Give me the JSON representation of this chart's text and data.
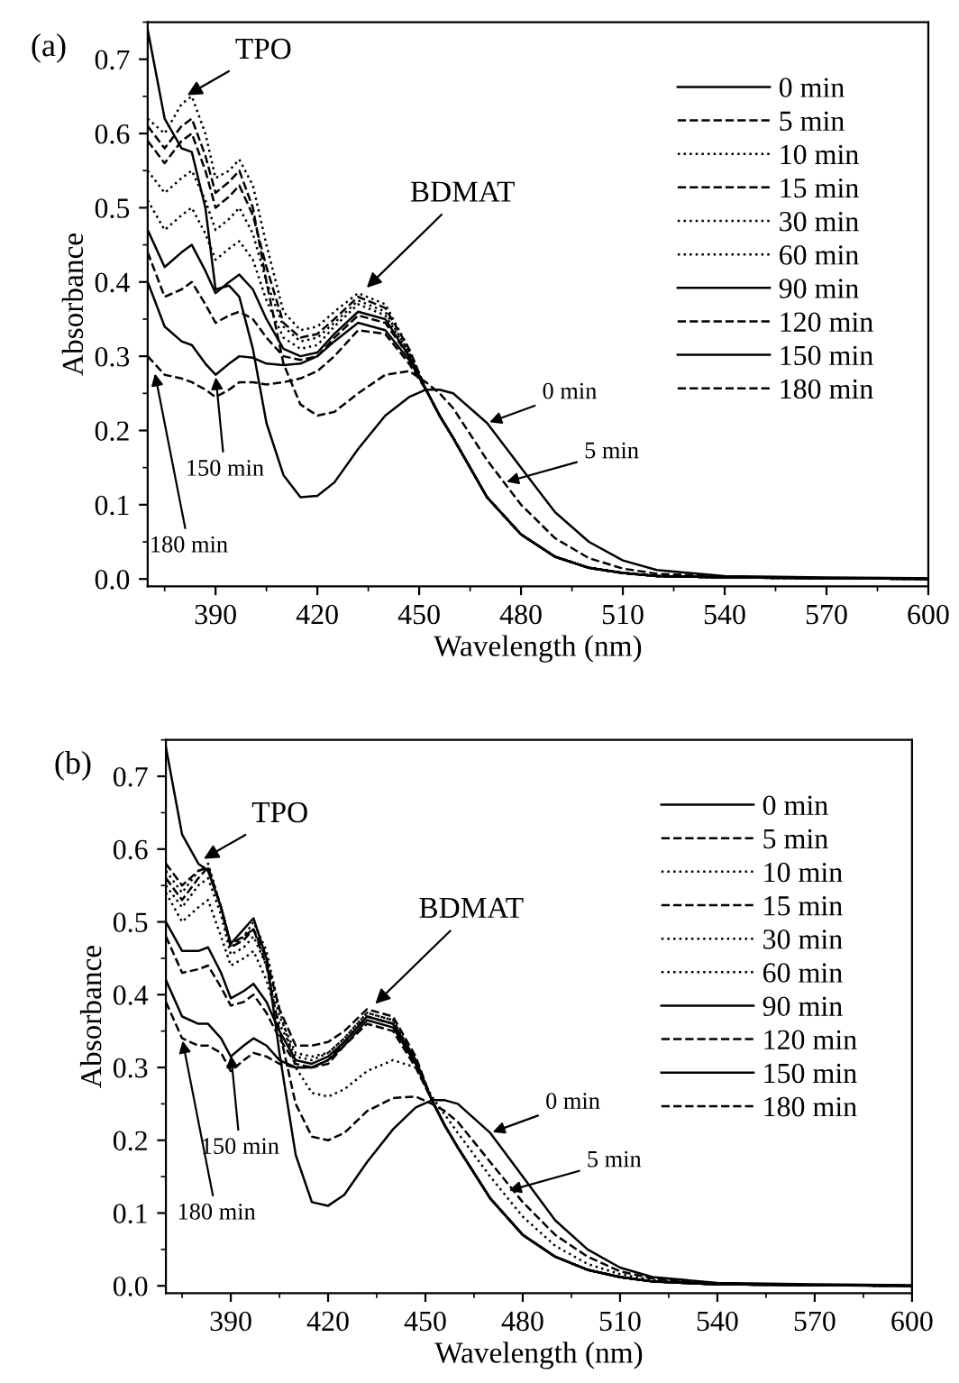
{
  "chart_data": [
    {
      "type": "line",
      "xlabel": "Wavelength (nm)",
      "ylabel": "Absorbance",
      "legend": "top right",
      "grid": false,
      "x": [
        370,
        375,
        380,
        383,
        387,
        390,
        394,
        397,
        401,
        405,
        410,
        415,
        420,
        425,
        432,
        440,
        447,
        452,
        456,
        460,
        470,
        480,
        490,
        500,
        510,
        520,
        540,
        570,
        600
      ],
      "xlim": [
        370,
        600
      ],
      "xticks": [
        390,
        420,
        450,
        480,
        510,
        540,
        570,
        600
      ],
      "ylim": [
        -0.01,
        0.75
      ],
      "yticks": [
        {
          "value": 0,
          "label": "0.0"
        },
        {
          "value": 0.1,
          "label": "0.1"
        },
        {
          "value": 0.2,
          "label": "0.2"
        },
        {
          "value": 0.3,
          "label": "0.3"
        },
        {
          "value": 0.4,
          "label": "0.4"
        },
        {
          "value": 0.5,
          "label": "0.5"
        },
        {
          "value": 0.6,
          "label": "0.6"
        },
        {
          "value": 0.7,
          "label": "0.7"
        }
      ],
      "series": [
        {
          "name": "0 min",
          "color": "#000000",
          "line_style": "solid",
          "values": [
            0.74,
            0.62,
            0.58,
            0.575,
            0.5,
            0.39,
            0.395,
            0.38,
            0.31,
            0.21,
            0.14,
            0.11,
            0.112,
            0.13,
            0.175,
            0.22,
            0.245,
            0.255,
            0.255,
            0.25,
            0.21,
            0.15,
            0.09,
            0.05,
            0.025,
            0.012,
            0.004,
            0.002,
            0.001
          ]
        },
        {
          "name": "5 min",
          "color": "#000000",
          "line_style": "dashed",
          "values": [
            0.61,
            0.58,
            0.61,
            0.62,
            0.57,
            0.52,
            0.535,
            0.55,
            0.5,
            0.4,
            0.29,
            0.235,
            0.22,
            0.225,
            0.25,
            0.275,
            0.28,
            0.265,
            0.25,
            0.23,
            0.16,
            0.1,
            0.055,
            0.028,
            0.014,
            0.007,
            0.003,
            0.001,
            0.0
          ]
        },
        {
          "name": "10 min",
          "color": "#000000",
          "line_style": "dotted",
          "values": [
            0.62,
            0.6,
            0.64,
            0.65,
            0.6,
            0.54,
            0.55,
            0.565,
            0.53,
            0.45,
            0.36,
            0.335,
            0.34,
            0.36,
            0.385,
            0.37,
            0.31,
            0.255,
            0.22,
            0.19,
            0.11,
            0.06,
            0.03,
            0.015,
            0.008,
            0.004,
            0.002,
            0.001,
            0.0
          ]
        },
        {
          "name": "15 min",
          "color": "#000000",
          "line_style": "dashed",
          "values": [
            0.59,
            0.56,
            0.59,
            0.6,
            0.55,
            0.5,
            0.515,
            0.53,
            0.49,
            0.42,
            0.345,
            0.325,
            0.33,
            0.35,
            0.38,
            0.365,
            0.31,
            0.255,
            0.22,
            0.19,
            0.11,
            0.06,
            0.03,
            0.015,
            0.008,
            0.004,
            0.002,
            0.001,
            0.0
          ]
        },
        {
          "name": "30 min",
          "color": "#000000",
          "line_style": "dotted",
          "values": [
            0.55,
            0.52,
            0.54,
            0.55,
            0.51,
            0.47,
            0.485,
            0.5,
            0.465,
            0.4,
            0.34,
            0.32,
            0.325,
            0.345,
            0.375,
            0.36,
            0.305,
            0.255,
            0.22,
            0.19,
            0.11,
            0.06,
            0.03,
            0.015,
            0.008,
            0.004,
            0.002,
            0.001,
            0.0
          ]
        },
        {
          "name": "60 min",
          "color": "#000000",
          "line_style": "dotted",
          "values": [
            0.51,
            0.47,
            0.49,
            0.5,
            0.465,
            0.43,
            0.445,
            0.455,
            0.43,
            0.375,
            0.325,
            0.31,
            0.315,
            0.34,
            0.37,
            0.355,
            0.305,
            0.255,
            0.22,
            0.19,
            0.11,
            0.06,
            0.03,
            0.015,
            0.008,
            0.004,
            0.002,
            0.001,
            0.0
          ]
        },
        {
          "name": "90 min",
          "color": "#000000",
          "line_style": "solid",
          "values": [
            0.47,
            0.42,
            0.44,
            0.45,
            0.415,
            0.385,
            0.4,
            0.41,
            0.39,
            0.35,
            0.31,
            0.3,
            0.305,
            0.33,
            0.36,
            0.35,
            0.3,
            0.255,
            0.22,
            0.19,
            0.11,
            0.06,
            0.03,
            0.015,
            0.008,
            0.004,
            0.002,
            0.001,
            0.0
          ]
        },
        {
          "name": "120 min",
          "color": "#000000",
          "line_style": "dashed",
          "values": [
            0.44,
            0.38,
            0.39,
            0.4,
            0.37,
            0.345,
            0.355,
            0.36,
            0.35,
            0.325,
            0.3,
            0.295,
            0.3,
            0.325,
            0.355,
            0.345,
            0.3,
            0.255,
            0.22,
            0.19,
            0.11,
            0.06,
            0.03,
            0.015,
            0.008,
            0.004,
            0.002,
            0.001,
            0.0
          ]
        },
        {
          "name": "150 min",
          "color": "#000000",
          "line_style": "solid",
          "values": [
            0.4,
            0.34,
            0.32,
            0.315,
            0.29,
            0.275,
            0.29,
            0.3,
            0.298,
            0.29,
            0.288,
            0.29,
            0.3,
            0.32,
            0.345,
            0.335,
            0.295,
            0.255,
            0.22,
            0.19,
            0.11,
            0.06,
            0.03,
            0.015,
            0.008,
            0.004,
            0.002,
            0.001,
            0.0
          ]
        },
        {
          "name": "180 min",
          "color": "#000000",
          "line_style": "dashed",
          "values": [
            0.3,
            0.275,
            0.27,
            0.265,
            0.255,
            0.245,
            0.255,
            0.265,
            0.265,
            0.262,
            0.265,
            0.27,
            0.28,
            0.3,
            0.335,
            0.33,
            0.29,
            0.255,
            0.22,
            0.19,
            0.11,
            0.06,
            0.03,
            0.015,
            0.008,
            0.004,
            0.002,
            0.001,
            0.0
          ]
        }
      ],
      "annotations": [
        "(a)",
        {
          "text": "TPO",
          "x": 381,
          "y": 0.65
        },
        {
          "text": "BDMAT",
          "x": 434,
          "y": 0.39
        },
        {
          "text": "150 min",
          "x": 390,
          "y": 0.275
        },
        {
          "text": "180 min",
          "x": 372,
          "y": 0.28
        },
        {
          "text": "0 min",
          "x": 470,
          "y": 0.21
        },
        {
          "text": "5 min",
          "x": 475,
          "y": 0.13
        }
      ]
    },
    {
      "type": "line",
      "xlabel": "Wavelength (nm)",
      "ylabel": "Absorbance",
      "legend": "top right",
      "grid": false,
      "x": [
        370,
        375,
        380,
        383,
        387,
        390,
        394,
        397,
        401,
        405,
        410,
        415,
        420,
        425,
        432,
        440,
        447,
        452,
        456,
        460,
        470,
        480,
        490,
        500,
        510,
        520,
        540,
        570,
        600
      ],
      "xlim": [
        370,
        600
      ],
      "xticks": [
        390,
        420,
        450,
        480,
        510,
        540,
        570,
        600
      ],
      "ylim": [
        -0.01,
        0.75
      ],
      "yticks": [
        {
          "value": 0,
          "label": "0.0"
        },
        {
          "value": 0.1,
          "label": "0.1"
        },
        {
          "value": 0.2,
          "label": "0.2"
        },
        {
          "value": 0.3,
          "label": "0.3"
        },
        {
          "value": 0.4,
          "label": "0.4"
        },
        {
          "value": 0.5,
          "label": "0.5"
        },
        {
          "value": 0.6,
          "label": "0.6"
        },
        {
          "value": 0.7,
          "label": "0.7"
        }
      ],
      "series": [
        {
          "name": "0 min",
          "color": "#000000",
          "line_style": "solid",
          "values": [
            0.74,
            0.62,
            0.58,
            0.57,
            0.52,
            0.47,
            0.49,
            0.505,
            0.45,
            0.32,
            0.18,
            0.115,
            0.11,
            0.125,
            0.17,
            0.215,
            0.245,
            0.255,
            0.255,
            0.25,
            0.21,
            0.15,
            0.09,
            0.05,
            0.025,
            0.012,
            0.004,
            0.002,
            0.001
          ]
        },
        {
          "name": "5 min",
          "color": "#000000",
          "line_style": "dashed",
          "values": [
            0.58,
            0.55,
            0.57,
            0.575,
            0.52,
            0.47,
            0.48,
            0.49,
            0.44,
            0.35,
            0.25,
            0.205,
            0.2,
            0.21,
            0.24,
            0.258,
            0.26,
            0.25,
            0.24,
            0.225,
            0.17,
            0.115,
            0.07,
            0.04,
            0.02,
            0.01,
            0.003,
            0.001,
            0.0
          ]
        },
        {
          "name": "10 min",
          "color": "#000000",
          "line_style": "dotted",
          "values": [
            0.57,
            0.54,
            0.57,
            0.58,
            0.52,
            0.465,
            0.48,
            0.5,
            0.46,
            0.38,
            0.3,
            0.265,
            0.26,
            0.27,
            0.295,
            0.31,
            0.3,
            0.26,
            0.235,
            0.21,
            0.15,
            0.095,
            0.055,
            0.03,
            0.016,
            0.008,
            0.003,
            0.001,
            0.0
          ]
        },
        {
          "name": "15 min",
          "color": "#000000",
          "line_style": "dashed",
          "values": [
            0.56,
            0.53,
            0.56,
            0.575,
            0.52,
            0.465,
            0.475,
            0.49,
            0.45,
            0.38,
            0.33,
            0.33,
            0.335,
            0.35,
            0.38,
            0.37,
            0.315,
            0.255,
            0.22,
            0.19,
            0.12,
            0.07,
            0.04,
            0.022,
            0.012,
            0.006,
            0.002,
            0.001,
            0.0
          ]
        },
        {
          "name": "30 min",
          "color": "#000000",
          "line_style": "dotted",
          "values": [
            0.55,
            0.52,
            0.55,
            0.56,
            0.51,
            0.455,
            0.465,
            0.48,
            0.44,
            0.37,
            0.32,
            0.315,
            0.32,
            0.34,
            0.375,
            0.365,
            0.31,
            0.255,
            0.22,
            0.19,
            0.12,
            0.07,
            0.04,
            0.022,
            0.012,
            0.006,
            0.002,
            0.001,
            0.0
          ]
        },
        {
          "name": "60 min",
          "color": "#000000",
          "line_style": "dotted",
          "values": [
            0.54,
            0.5,
            0.52,
            0.53,
            0.48,
            0.44,
            0.45,
            0.46,
            0.42,
            0.36,
            0.315,
            0.31,
            0.32,
            0.34,
            0.375,
            0.365,
            0.31,
            0.255,
            0.22,
            0.19,
            0.12,
            0.07,
            0.04,
            0.022,
            0.012,
            0.006,
            0.002,
            0.001,
            0.0
          ]
        },
        {
          "name": "90 min",
          "color": "#000000",
          "line_style": "solid",
          "values": [
            0.5,
            0.46,
            0.46,
            0.465,
            0.43,
            0.395,
            0.405,
            0.415,
            0.39,
            0.35,
            0.31,
            0.305,
            0.315,
            0.335,
            0.37,
            0.36,
            0.31,
            0.255,
            0.22,
            0.19,
            0.12,
            0.07,
            0.04,
            0.022,
            0.012,
            0.006,
            0.002,
            0.001,
            0.0
          ]
        },
        {
          "name": "120 min",
          "color": "#000000",
          "line_style": "dashed",
          "values": [
            0.48,
            0.43,
            0.435,
            0.44,
            0.41,
            0.385,
            0.39,
            0.4,
            0.375,
            0.34,
            0.305,
            0.3,
            0.31,
            0.335,
            0.37,
            0.36,
            0.31,
            0.255,
            0.22,
            0.19,
            0.12,
            0.07,
            0.04,
            0.022,
            0.012,
            0.006,
            0.002,
            0.001,
            0.0
          ]
        },
        {
          "name": "150 min",
          "color": "#000000",
          "line_style": "solid",
          "values": [
            0.42,
            0.37,
            0.36,
            0.36,
            0.34,
            0.315,
            0.33,
            0.34,
            0.33,
            0.31,
            0.3,
            0.3,
            0.31,
            0.33,
            0.365,
            0.355,
            0.305,
            0.255,
            0.22,
            0.19,
            0.12,
            0.07,
            0.04,
            0.022,
            0.012,
            0.006,
            0.002,
            0.001,
            0.0
          ]
        },
        {
          "name": "180 min",
          "color": "#000000",
          "line_style": "dashed",
          "values": [
            0.39,
            0.34,
            0.33,
            0.33,
            0.32,
            0.295,
            0.31,
            0.32,
            0.315,
            0.305,
            0.3,
            0.3,
            0.305,
            0.33,
            0.36,
            0.35,
            0.3,
            0.255,
            0.22,
            0.19,
            0.12,
            0.07,
            0.04,
            0.022,
            0.012,
            0.006,
            0.002,
            0.001,
            0.0
          ]
        }
      ],
      "annotations": [
        "(b)",
        {
          "text": "TPO",
          "x": 381,
          "y": 0.585
        },
        {
          "text": "BDMAT",
          "x": 434,
          "y": 0.385
        },
        {
          "text": "150 min",
          "x": 390,
          "y": 0.32
        },
        {
          "text": "180 min",
          "x": 375,
          "y": 0.34
        },
        {
          "text": "0 min",
          "x": 470,
          "y": 0.21
        },
        {
          "text": "5 min",
          "x": 475,
          "y": 0.13
        }
      ]
    }
  ]
}
